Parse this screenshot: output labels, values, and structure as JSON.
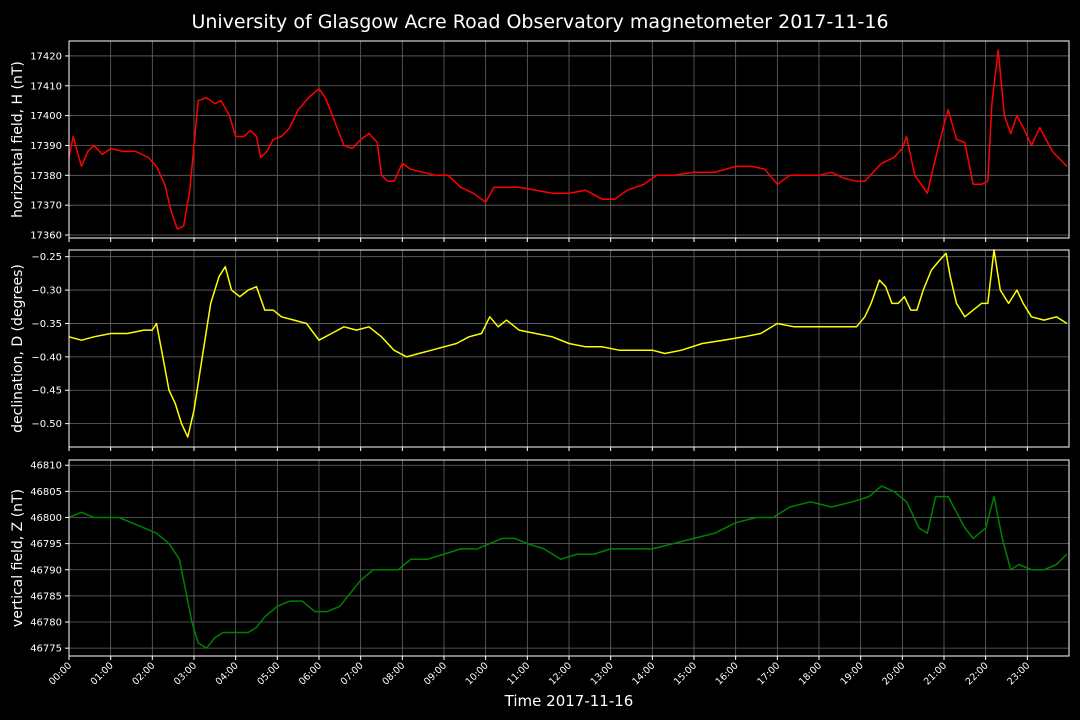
{
  "figure": {
    "title": "University of Glasgow Acre Road Observatory magnetometer 2017-11-16",
    "xlabel": "Time 2017-11-16",
    "background": "#000000",
    "grid_color": "#666666",
    "axis_color": "#ffffff"
  },
  "chart_data": [
    {
      "type": "line",
      "panel": "horizontal",
      "ylabel": "horizontal field, H (nT)",
      "color": "#ff0000",
      "ylim": [
        17359,
        17425
      ],
      "yticks": [
        17360,
        17370,
        17380,
        17390,
        17400,
        17410,
        17420
      ],
      "grid": true,
      "x_hours": [
        0,
        0.1,
        0.2,
        0.3,
        0.45,
        0.6,
        0.8,
        1.0,
        1.3,
        1.6,
        1.9,
        2.1,
        2.3,
        2.45,
        2.6,
        2.75,
        2.9,
        3.0,
        3.1,
        3.3,
        3.5,
        3.65,
        3.85,
        4.0,
        4.2,
        4.35,
        4.5,
        4.6,
        4.75,
        4.9,
        5.1,
        5.3,
        5.5,
        5.75,
        6.0,
        6.15,
        6.35,
        6.6,
        6.8,
        7.0,
        7.2,
        7.4,
        7.5,
        7.65,
        7.8,
        8.0,
        8.2,
        8.5,
        8.8,
        9.1,
        9.4,
        9.7,
        10.0,
        10.2,
        10.5,
        10.8,
        11.2,
        11.6,
        12.0,
        12.4,
        12.8,
        13.1,
        13.4,
        13.8,
        14.1,
        14.5,
        15.0,
        15.5,
        16.0,
        16.4,
        16.7,
        17.0,
        17.3,
        17.6,
        18.0,
        18.3,
        18.6,
        18.9,
        19.1,
        19.3,
        19.5,
        19.8,
        20.0,
        20.1,
        20.3,
        20.6,
        20.8,
        21.0,
        21.1,
        21.3,
        21.5,
        21.7,
        21.9,
        22.05,
        22.15,
        22.3,
        22.45,
        22.6,
        22.75,
        22.9,
        23.1,
        23.3,
        23.6,
        23.95
      ],
      "y": [
        17386,
        17393,
        17388,
        17383,
        17388,
        17390,
        17387,
        17389,
        17388,
        17388,
        17386,
        17383,
        17377,
        17368,
        17362,
        17363,
        17375,
        17390,
        17405,
        17406,
        17404,
        17405,
        17400,
        17393,
        17393,
        17395,
        17393,
        17386,
        17388,
        17392,
        17393,
        17396,
        17402,
        17406,
        17409,
        17406,
        17399,
        17390,
        17389,
        17392,
        17394,
        17391,
        17380,
        17378,
        17378,
        17384,
        17382,
        17381,
        17380,
        17380,
        17376,
        17374,
        17371,
        17376,
        17376,
        17376,
        17375,
        17374,
        17374,
        17375,
        17372,
        17372,
        17375,
        17377,
        17380,
        17380,
        17381,
        17381,
        17383,
        17383,
        17382,
        17377,
        17380,
        17380,
        17380,
        17381,
        17379,
        17378,
        17378,
        17381,
        17384,
        17386,
        17389,
        17393,
        17380,
        17374,
        17386,
        17397,
        17402,
        17392,
        17391,
        17377,
        17377,
        17378,
        17404,
        17422,
        17400,
        17394,
        17400,
        17396,
        17390,
        17396,
        17388,
        17383
      ]
    },
    {
      "type": "line",
      "panel": "declination",
      "ylabel": "declination, D (degrees)",
      "color": "#ffff00",
      "ylim": [
        -0.535,
        -0.24
      ],
      "yticks": [
        -0.25,
        -0.3,
        -0.35,
        -0.4,
        -0.45,
        -0.5
      ],
      "ytick_labels": [
        "−0.25",
        "−0.30",
        "−0.35",
        "−0.40",
        "−0.45",
        "−0.50"
      ],
      "grid": true,
      "x_hours": [
        0,
        0.3,
        0.6,
        1.0,
        1.4,
        1.8,
        2.0,
        2.1,
        2.25,
        2.4,
        2.55,
        2.7,
        2.85,
        3.0,
        3.2,
        3.4,
        3.6,
        3.75,
        3.9,
        4.1,
        4.3,
        4.5,
        4.7,
        4.9,
        5.1,
        5.4,
        5.7,
        6.0,
        6.3,
        6.6,
        6.9,
        7.2,
        7.5,
        7.8,
        8.1,
        8.4,
        8.7,
        9.0,
        9.3,
        9.6,
        9.9,
        10.1,
        10.3,
        10.5,
        10.8,
        11.2,
        11.6,
        12.0,
        12.4,
        12.8,
        13.2,
        13.6,
        14.0,
        14.3,
        14.7,
        15.2,
        15.7,
        16.2,
        16.6,
        17.0,
        17.4,
        17.8,
        18.2,
        18.6,
        18.9,
        19.1,
        19.25,
        19.45,
        19.6,
        19.75,
        19.9,
        20.05,
        20.2,
        20.35,
        20.5,
        20.7,
        20.9,
        21.05,
        21.15,
        21.3,
        21.5,
        21.7,
        21.9,
        22.05,
        22.2,
        22.35,
        22.55,
        22.75,
        22.9,
        23.1,
        23.4,
        23.7,
        23.95
      ],
      "y": [
        -0.37,
        -0.375,
        -0.37,
        -0.365,
        -0.365,
        -0.36,
        -0.36,
        -0.35,
        -0.4,
        -0.45,
        -0.47,
        -0.5,
        -0.52,
        -0.48,
        -0.4,
        -0.32,
        -0.28,
        -0.265,
        -0.3,
        -0.31,
        -0.3,
        -0.295,
        -0.33,
        -0.33,
        -0.34,
        -0.345,
        -0.35,
        -0.375,
        -0.365,
        -0.355,
        -0.36,
        -0.355,
        -0.37,
        -0.39,
        -0.4,
        -0.395,
        -0.39,
        -0.385,
        -0.38,
        -0.37,
        -0.365,
        -0.34,
        -0.355,
        -0.345,
        -0.36,
        -0.365,
        -0.37,
        -0.38,
        -0.385,
        -0.385,
        -0.39,
        -0.39,
        -0.39,
        -0.395,
        -0.39,
        -0.38,
        -0.375,
        -0.37,
        -0.365,
        -0.35,
        -0.355,
        -0.355,
        -0.355,
        -0.355,
        -0.355,
        -0.34,
        -0.32,
        -0.285,
        -0.295,
        -0.32,
        -0.32,
        -0.31,
        -0.33,
        -0.33,
        -0.3,
        -0.27,
        -0.255,
        -0.245,
        -0.28,
        -0.32,
        -0.34,
        -0.33,
        -0.32,
        -0.32,
        -0.24,
        -0.3,
        -0.32,
        -0.3,
        -0.32,
        -0.34,
        -0.345,
        -0.34,
        -0.35
      ]
    },
    {
      "type": "line",
      "panel": "vertical",
      "ylabel": "vertical field, Z (nT)",
      "color": "#008000",
      "ylim": [
        46773.5,
        46811
      ],
      "yticks": [
        46775,
        46780,
        46785,
        46790,
        46795,
        46800,
        46805,
        46810
      ],
      "grid": true,
      "x_hours": [
        0,
        0.3,
        0.6,
        0.9,
        1.2,
        1.5,
        1.8,
        2.1,
        2.4,
        2.65,
        2.8,
        2.95,
        3.1,
        3.3,
        3.5,
        3.7,
        4.0,
        4.3,
        4.5,
        4.7,
        5.0,
        5.3,
        5.6,
        5.9,
        6.2,
        6.5,
        6.8,
        7.0,
        7.3,
        7.6,
        7.9,
        8.2,
        8.6,
        9.0,
        9.4,
        9.8,
        10.1,
        10.4,
        10.7,
        11.0,
        11.4,
        11.8,
        12.2,
        12.6,
        13.0,
        13.5,
        14.0,
        14.5,
        15.0,
        15.5,
        16.0,
        16.5,
        16.9,
        17.3,
        17.8,
        18.3,
        18.8,
        19.2,
        19.5,
        19.8,
        20.1,
        20.4,
        20.6,
        20.8,
        21.1,
        21.3,
        21.5,
        21.7,
        22.0,
        22.2,
        22.4,
        22.6,
        22.8,
        23.1,
        23.4,
        23.7,
        23.95
      ],
      "y": [
        46800,
        46801,
        46800,
        46800,
        46800,
        46799,
        46798,
        46797,
        46795,
        46792,
        46786,
        46780,
        46776,
        46775,
        46777,
        46778,
        46778,
        46778,
        46779,
        46781,
        46783,
        46784,
        46784,
        46782,
        46782,
        46783,
        46786,
        46788,
        46790,
        46790,
        46790,
        46792,
        46792,
        46793,
        46794,
        46794,
        46795,
        46796,
        46796,
        46795,
        46794,
        46792,
        46793,
        46793,
        46794,
        46794,
        46794,
        46795,
        46796,
        46797,
        46799,
        46800,
        46800,
        46802,
        46803,
        46802,
        46803,
        46804,
        46806,
        46805,
        46803,
        46798,
        46797,
        46804,
        46804,
        46801,
        46798,
        46796,
        46798,
        46804,
        46796,
        46790,
        46791,
        46790,
        46790,
        46791,
        46793
      ]
    }
  ],
  "x_axis": {
    "range_hours": [
      0,
      24
    ],
    "tick_labels": [
      "00:00",
      "01:00",
      "02:00",
      "03:00",
      "04:00",
      "05:00",
      "06:00",
      "07:00",
      "08:00",
      "09:00",
      "10:00",
      "11:00",
      "12:00",
      "13:00",
      "14:00",
      "15:00",
      "16:00",
      "17:00",
      "18:00",
      "19:00",
      "20:00",
      "21:00",
      "22:00",
      "23:00"
    ]
  }
}
